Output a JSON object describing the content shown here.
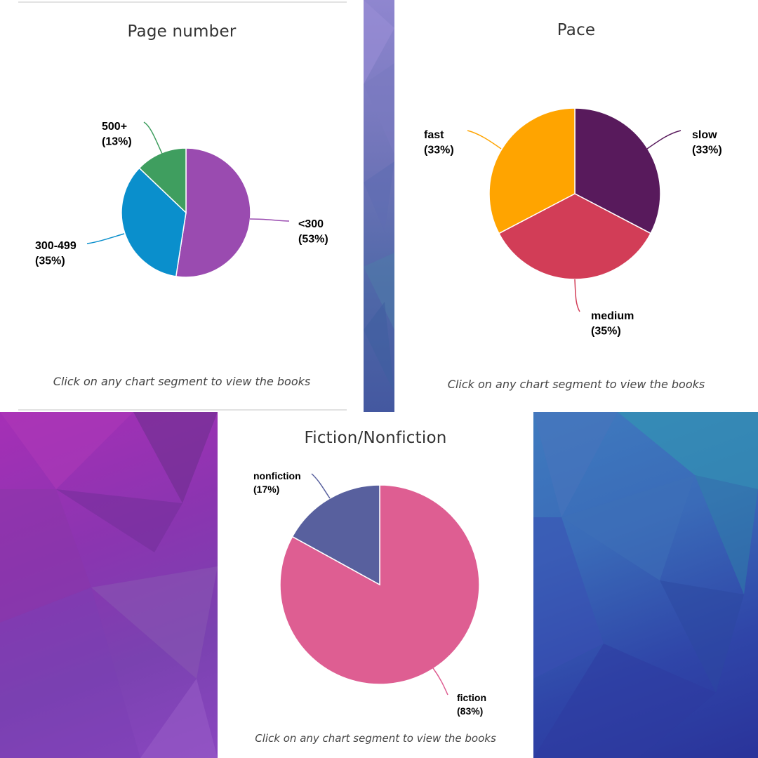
{
  "chart_data": [
    {
      "type": "pie",
      "title": "Page number",
      "slices": [
        {
          "label": "<300",
          "pct_text": "(53%)",
          "value": 53,
          "color": "#9a4bb0"
        },
        {
          "label": "300-499",
          "pct_text": "(35%)",
          "value": 35,
          "color": "#0a8fcc"
        },
        {
          "label": "500+",
          "pct_text": "(13%)",
          "value": 13,
          "color": "#3f9e5f"
        }
      ],
      "hint": "Click on any chart segment to view the books"
    },
    {
      "type": "pie",
      "title": "Pace",
      "slices": [
        {
          "label": "slow",
          "pct_text": "(33%)",
          "value": 33,
          "color": "#581a5c"
        },
        {
          "label": "medium",
          "pct_text": "(35%)",
          "value": 35,
          "color": "#d23d57"
        },
        {
          "label": "fast",
          "pct_text": "(33%)",
          "value": 33,
          "color": "#ffa400"
        }
      ],
      "hint": "Click on any chart segment to view the books"
    },
    {
      "type": "pie",
      "title": "Fiction/Nonfiction",
      "slices": [
        {
          "label": "fiction",
          "pct_text": "(83%)",
          "value": 83,
          "color": "#de5e92"
        },
        {
          "label": "nonfiction",
          "pct_text": "(17%)",
          "value": 17,
          "color": "#58609e"
        }
      ],
      "hint": "Click on any chart segment to view the books"
    }
  ]
}
